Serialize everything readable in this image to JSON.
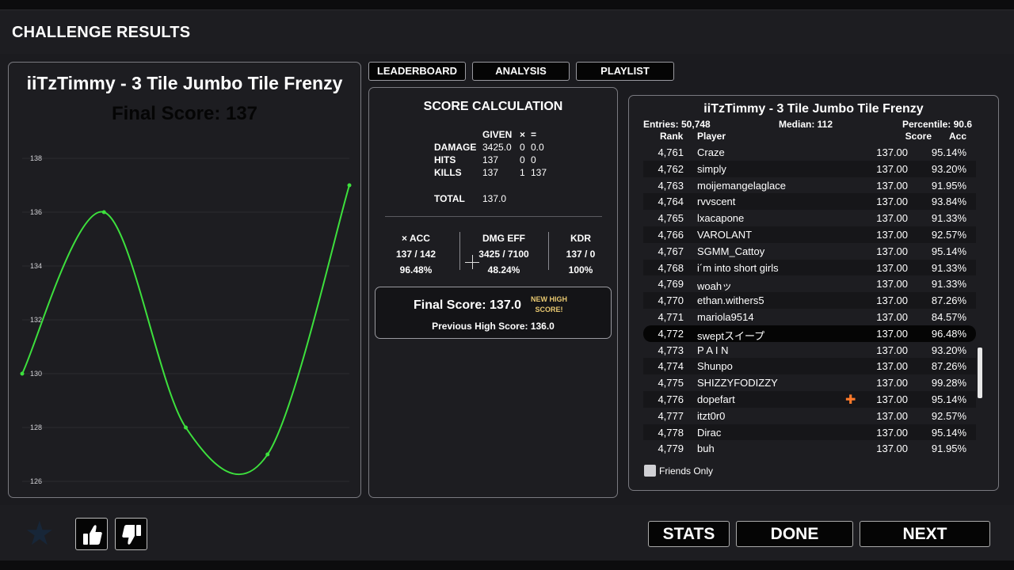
{
  "header": {
    "title": "CHALLENGE RESULTS"
  },
  "chart_panel": {
    "title": "iiTzTimmy - 3 Tile Jumbo Tile Frenzy",
    "final_score_label": "Final Score: 137"
  },
  "chart_data": {
    "type": "line",
    "x": [
      1,
      2,
      3,
      4,
      5
    ],
    "series": [
      {
        "values": [
          130,
          136,
          128,
          127,
          137
        ]
      }
    ],
    "yticks": [
      126,
      128,
      130,
      132,
      134,
      136,
      138
    ],
    "ylim": [
      126,
      138
    ],
    "grid": true,
    "line_color": "#3de03d"
  },
  "tabs": [
    {
      "label": "LEADERBOARD"
    },
    {
      "label": "ANALYSIS"
    },
    {
      "label": "PLAYLIST"
    }
  ],
  "calc": {
    "title": "SCORE CALCULATION",
    "given_label": "GIVEN",
    "times_label": "×",
    "equals_label": "=",
    "rows": [
      {
        "label": "DAMAGE",
        "given": "3425.0",
        "mult": "0",
        "result": "0.0"
      },
      {
        "label": "HITS",
        "given": "137",
        "mult": "0",
        "result": "0"
      },
      {
        "label": "KILLS",
        "given": "137",
        "mult": "1",
        "result": "137"
      }
    ],
    "total_label": "TOTAL",
    "total_value": "137.0",
    "stats": [
      {
        "header": "× ACC",
        "ratio": "137 / 142",
        "pct": "96.48%"
      },
      {
        "header": "DMG EFF",
        "ratio": "3425 / 7100",
        "pct": "48.24%"
      },
      {
        "header": "KDR",
        "ratio": "137 / 0",
        "pct": "100%"
      }
    ],
    "final_label": "Final Score:  137.0",
    "new_high_line1": "NEW HIGH",
    "new_high_line2": "SCORE!",
    "previous_label": "Previous High Score:  136.0"
  },
  "leaderboard": {
    "title": "iiTzTimmy - 3 Tile Jumbo Tile Frenzy",
    "entries": "Entries: 50,748",
    "median": "Median: 112",
    "percentile": "Percentile: 90.6",
    "headers": {
      "rank": "Rank",
      "player": "Player",
      "score": "Score",
      "acc": "Acc"
    },
    "rows": [
      {
        "rank": "4,761",
        "player": "Craze",
        "score": "137.00",
        "acc": "95.14%"
      },
      {
        "rank": "4,762",
        "player": "simply",
        "score": "137.00",
        "acc": "93.20%"
      },
      {
        "rank": "4,763",
        "player": "moijemangelaglace",
        "score": "137.00",
        "acc": "91.95%"
      },
      {
        "rank": "4,764",
        "player": "rvvscent",
        "score": "137.00",
        "acc": "93.84%"
      },
      {
        "rank": "4,765",
        "player": "lxacapone",
        "score": "137.00",
        "acc": "91.33%"
      },
      {
        "rank": "4,766",
        "player": "VAROLANT",
        "score": "137.00",
        "acc": "92.57%"
      },
      {
        "rank": "4,767",
        "player": "SGMM_Cattoy",
        "score": "137.00",
        "acc": "95.14%"
      },
      {
        "rank": "4,768",
        "player": "i´m into short girls",
        "score": "137.00",
        "acc": "91.33%"
      },
      {
        "rank": "4,769",
        "player": "woahッ",
        "score": "137.00",
        "acc": "91.33%"
      },
      {
        "rank": "4,770",
        "player": "ethan.withers5",
        "score": "137.00",
        "acc": "87.26%"
      },
      {
        "rank": "4,771",
        "player": "mariola9514",
        "score": "137.00",
        "acc": "84.57%"
      },
      {
        "rank": "4,772",
        "player": "sweptスイープ",
        "score": "137.00",
        "acc": "96.48%"
      },
      {
        "rank": "4,773",
        "player": "P A I N",
        "score": "137.00",
        "acc": "93.20%"
      },
      {
        "rank": "4,774",
        "player": "Shunpo",
        "score": "137.00",
        "acc": "87.26%"
      },
      {
        "rank": "4,775",
        "player": "SHIZZYFODIZZY",
        "score": "137.00",
        "acc": "99.28%"
      },
      {
        "rank": "4,776",
        "player": "dopefart",
        "score": "137.00",
        "acc": "95.14%"
      },
      {
        "rank": "4,777",
        "player": "itzt0r0",
        "score": "137.00",
        "acc": "92.57%"
      },
      {
        "rank": "4,778",
        "player": "Dirac",
        "score": "137.00",
        "acc": "95.14%"
      },
      {
        "rank": "4,779",
        "player": "buh",
        "score": "137.00",
        "acc": "91.95%"
      }
    ],
    "friends_only_label": "Friends Only"
  },
  "bottom": {
    "stats_label": "STATS",
    "done_label": "DONE",
    "next_label": "NEXT"
  }
}
